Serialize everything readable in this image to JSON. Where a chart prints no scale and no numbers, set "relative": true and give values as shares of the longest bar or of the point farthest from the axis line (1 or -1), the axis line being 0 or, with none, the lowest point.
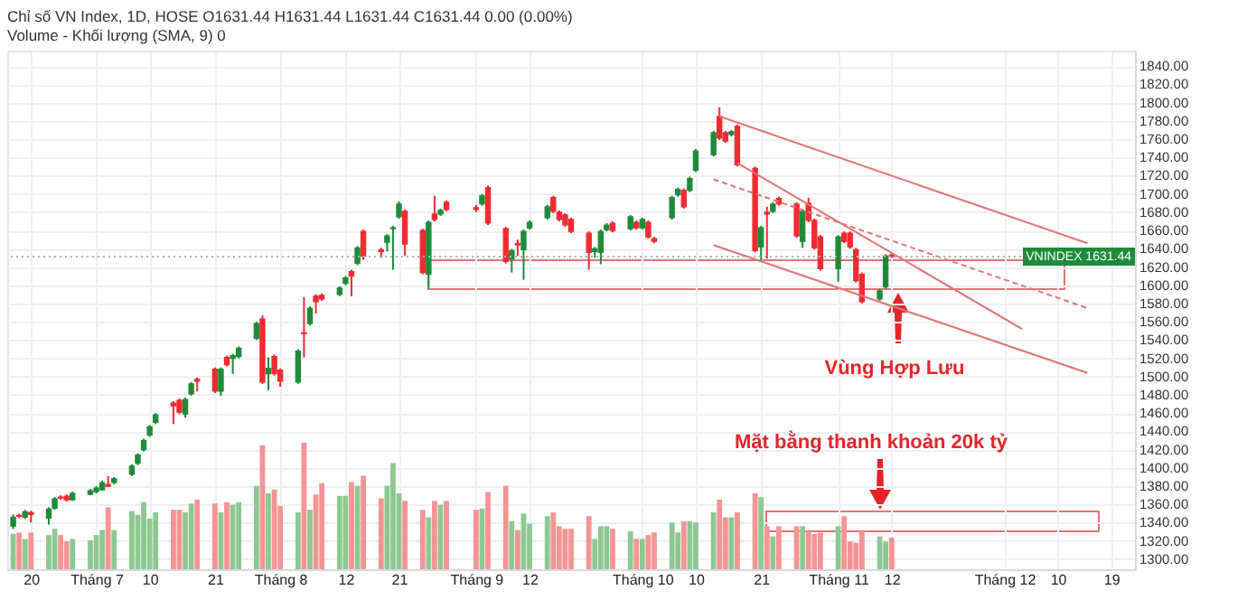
{
  "chart_data": [
    {
      "type": "candlestick",
      "title": "Chỉ số VN Index, 1D, HOSE  O1631.44 H1631.44 L1631.44 C1631.44 0.00 (0.00%)",
      "subtitle": "Volume - Khối lượng (SMA, 9) 0",
      "x": [
        "--06-17",
        "--06-18",
        "--06-19",
        "--06-20",
        "--06-23",
        "--06-24",
        "--06-25",
        "--06-26",
        "--06-27",
        "--06-30",
        "--07-01",
        "--07-02",
        "--07-03",
        "--07-04",
        "--07-07",
        "--07-08",
        "--07-09",
        "--07-10",
        "--07-11",
        "--07-14",
        "--07-15",
        "--07-16",
        "--07-17",
        "--07-18",
        "--07-21",
        "--07-22",
        "--07-23",
        "--07-24",
        "--07-25",
        "--07-28",
        "--07-29",
        "--07-30",
        "--07-31",
        "--08-01",
        "--08-04",
        "--08-05",
        "--08-06",
        "--08-07",
        "--08-08",
        "--08-11",
        "--08-12",
        "--08-13",
        "--08-14",
        "--08-15",
        "--08-18",
        "--08-19",
        "--08-20",
        "--08-21",
        "--08-22",
        "--08-25",
        "--08-26",
        "--08-27",
        "--08-28",
        "--08-29",
        "--09-03",
        "--09-04",
        "--09-05",
        "--09-08",
        "--09-09",
        "--09-10",
        "--09-11",
        "--09-12",
        "--09-15",
        "--09-16",
        "--09-17",
        "--09-18",
        "--09-19",
        "--09-22",
        "--09-23",
        "--09-24",
        "--09-25",
        "--09-26",
        "--09-29",
        "--09-30",
        "--10-01",
        "--10-02",
        "--10-03",
        "--10-06",
        "--10-07",
        "--10-08",
        "--10-09",
        "--10-10",
        "--10-13",
        "--10-14",
        "--10-15",
        "--10-16",
        "--10-17",
        "--10-20",
        "--10-21",
        "--10-22",
        "--10-23",
        "--10-24",
        "--10-27",
        "--10-28",
        "--10-29",
        "--10-30",
        "--10-31",
        "--11-03",
        "--11-04",
        "--11-05",
        "--11-06",
        "--11-07",
        "--11-10",
        "--11-11",
        "--11-12"
      ],
      "ohlc": [
        [
          1336,
          1349,
          1333,
          1346
        ],
        [
          1348,
          1350,
          1345,
          1347
        ],
        [
          1346,
          1354,
          1344,
          1352
        ],
        [
          1351,
          1353,
          1340,
          1349
        ],
        [
          1345,
          1357,
          1338,
          1355
        ],
        [
          1356,
          1368,
          1354,
          1366
        ],
        [
          1368,
          1370,
          1365,
          1367
        ],
        [
          1369,
          1371,
          1363,
          1365
        ],
        [
          1365,
          1374,
          1364,
          1372
        ],
        [
          1371,
          1377,
          1370,
          1375
        ],
        [
          1374,
          1380,
          1372,
          1378
        ],
        [
          1376,
          1386,
          1375,
          1384
        ],
        [
          1382,
          1391,
          1379,
          1380
        ],
        [
          1384,
          1390,
          1382,
          1388
        ],
        [
          1393,
          1404,
          1391,
          1402
        ],
        [
          1405,
          1416,
          1403,
          1414
        ],
        [
          1420,
          1432,
          1418,
          1430
        ],
        [
          1436,
          1447,
          1434,
          1445
        ],
        [
          1450,
          1460,
          1448,
          1458
        ],
        [
          1471,
          1473,
          1448,
          1468
        ],
        [
          1474,
          1476,
          1459,
          1461
        ],
        [
          1459,
          1477,
          1455,
          1475
        ],
        [
          1481,
          1494,
          1479,
          1492
        ],
        [
          1497,
          1499,
          1484,
          1495
        ],
        [
          1508,
          1510,
          1482,
          1484
        ],
        [
          1484,
          1510,
          1479,
          1508
        ],
        [
          1521,
          1523,
          1511,
          1513
        ],
        [
          1520,
          1525,
          1503,
          1523
        ],
        [
          1522,
          1533,
          1520,
          1531
        ],
        [
          1542,
          1560,
          1540,
          1558
        ],
        [
          1563,
          1567,
          1492,
          1494
        ],
        [
          1503,
          1521,
          1485,
          1509
        ],
        [
          1522,
          1524,
          1501,
          1503
        ],
        [
          1507,
          1509,
          1489,
          1495
        ],
        [
          1494,
          1530,
          1492,
          1528
        ],
        [
          1548,
          1587,
          1521,
          1547
        ],
        [
          1558,
          1577,
          1556,
          1575
        ],
        [
          1588,
          1590,
          1569,
          1582
        ],
        [
          1589,
          1591,
          1583,
          1585
        ],
        [
          1590,
          1599,
          1588,
          1597
        ],
        [
          1602,
          1610,
          1600,
          1608
        ],
        [
          1615,
          1617,
          1588,
          1610
        ],
        [
          1624,
          1643,
          1622,
          1641
        ],
        [
          1659,
          1661,
          1628,
          1632
        ],
        [
          1639,
          1641,
          1630,
          1637
        ],
        [
          1647,
          1656,
          1637,
          1654
        ],
        [
          1662,
          1665,
          1617,
          1663
        ],
        [
          1675,
          1692,
          1673,
          1689
        ],
        [
          1681,
          1683,
          1632,
          1645
        ],
        [
          1660,
          1662,
          1612,
          1614
        ],
        [
          1612,
          1671,
          1596,
          1669
        ],
        [
          1678,
          1698,
          1670,
          1672
        ],
        [
          1678,
          1684,
          1676,
          1682
        ],
        [
          1691,
          1693,
          1681,
          1683
        ],
        [
          1685,
          1688,
          1680,
          1683
        ],
        [
          1689,
          1700,
          1687,
          1698
        ],
        [
          1707,
          1709,
          1666,
          1668
        ],
        [
          1662,
          1664,
          1624,
          1626
        ],
        [
          1629,
          1640,
          1614,
          1638
        ],
        [
          1646,
          1650,
          1632,
          1644
        ],
        [
          1639,
          1661,
          1606,
          1659
        ],
        [
          1663,
          1671,
          1661,
          1669
        ],
        [
          1674,
          1688,
          1672,
          1686
        ],
        [
          1696,
          1698,
          1679,
          1681
        ],
        [
          1680,
          1682,
          1670,
          1672
        ],
        [
          1677,
          1679,
          1664,
          1666
        ],
        [
          1672,
          1674,
          1657,
          1659
        ],
        [
          1657,
          1659,
          1617,
          1636
        ],
        [
          1637,
          1642,
          1630,
          1640
        ],
        [
          1636,
          1661,
          1623,
          1659
        ],
        [
          1661,
          1668,
          1659,
          1666
        ],
        [
          1668,
          1670,
          1658,
          1660
        ],
        [
          1662,
          1677,
          1660,
          1675
        ],
        [
          1669,
          1671,
          1661,
          1663
        ],
        [
          1663,
          1674,
          1661,
          1672
        ],
        [
          1669,
          1671,
          1651,
          1653
        ],
        [
          1651,
          1653,
          1646,
          1648
        ],
        [
          1674,
          1698,
          1672,
          1696
        ],
        [
          1699,
          1707,
          1697,
          1705
        ],
        [
          1704,
          1706,
          1684,
          1686
        ],
        [
          1704,
          1719,
          1702,
          1717
        ],
        [
          1726,
          1749,
          1724,
          1747
        ],
        [
          1743,
          1769,
          1741,
          1767
        ],
        [
          1785,
          1795,
          1759,
          1761
        ],
        [
          1767,
          1769,
          1756,
          1758
        ],
        [
          1765,
          1770,
          1763,
          1768
        ],
        [
          1774,
          1776,
          1730,
          1732
        ],
        [
          1728,
          1730,
          1636,
          1638
        ],
        [
          1642,
          1665,
          1626,
          1663
        ],
        [
          1680,
          1686,
          1629,
          1678
        ],
        [
          1681,
          1691,
          1679,
          1689
        ],
        [
          1695,
          1697,
          1687,
          1689
        ],
        [
          1689,
          1691,
          1652,
          1654
        ],
        [
          1648,
          1683,
          1641,
          1681
        ],
        [
          1690,
          1696,
          1669,
          1671
        ],
        [
          1671,
          1673,
          1639,
          1641
        ],
        [
          1653,
          1655,
          1616,
          1618
        ],
        [
          1618,
          1655,
          1604,
          1653
        ],
        [
          1657,
          1659,
          1646,
          1648
        ],
        [
          1657,
          1659,
          1640,
          1642
        ],
        [
          1639,
          1641,
          1603,
          1605
        ],
        [
          1612,
          1614,
          1580,
          1582
        ],
        [
          1585,
          1596,
          1583,
          1594
        ],
        [
          1598,
          1634,
          1596,
          1632
        ],
        [
          1633,
          1635,
          1630,
          1631.44
        ]
      ],
      "colors": [
        "#1f8b3a",
        "#ef2b33",
        "#1f8b3a",
        "#ef2b33",
        "#1f8b3a",
        "#1f8b3a",
        "#ef2b33",
        "#ef2b33",
        "#1f8b3a",
        "#1f8b3a",
        "#1f8b3a",
        "#1f8b3a",
        "#ef2b33",
        "#1f8b3a",
        "#1f8b3a",
        "#1f8b3a",
        "#1f8b3a",
        "#1f8b3a",
        "#1f8b3a",
        "#ef2b33",
        "#ef2b33",
        "#1f8b3a",
        "#1f8b3a",
        "#ef2b33",
        "#ef2b33",
        "#1f8b3a",
        "#ef2b33",
        "#1f8b3a",
        "#1f8b3a",
        "#1f8b3a",
        "#ef2b33",
        "#1f8b3a",
        "#ef2b33",
        "#ef2b33",
        "#1f8b3a",
        "#ef2b33",
        "#1f8b3a",
        "#ef2b33",
        "#ef2b33",
        "#1f8b3a",
        "#1f8b3a",
        "#ef2b33",
        "#1f8b3a",
        "#ef2b33",
        "#ef2b33",
        "#1f8b3a",
        "#1f8b3a",
        "#1f8b3a",
        "#ef2b33",
        "#ef2b33",
        "#1f8b3a",
        "#ef2b33",
        "#1f8b3a",
        "#ef2b33",
        "#ef2b33",
        "#1f8b3a",
        "#ef2b33",
        "#ef2b33",
        "#1f8b3a",
        "#ef2b33",
        "#1f8b3a",
        "#1f8b3a",
        "#1f8b3a",
        "#ef2b33",
        "#ef2b33",
        "#ef2b33",
        "#ef2b33",
        "#ef2b33",
        "#1f8b3a",
        "#1f8b3a",
        "#1f8b3a",
        "#ef2b33",
        "#1f8b3a",
        "#ef2b33",
        "#1f8b3a",
        "#ef2b33",
        "#ef2b33",
        "#1f8b3a",
        "#1f8b3a",
        "#ef2b33",
        "#1f8b3a",
        "#1f8b3a",
        "#1f8b3a",
        "#ef2b33",
        "#ef2b33",
        "#1f8b3a",
        "#ef2b33",
        "#ef2b33",
        "#1f8b3a",
        "#ef2b33",
        "#1f8b3a",
        "#ef2b33",
        "#ef2b33",
        "#1f8b3a",
        "#ef2b33",
        "#ef2b33",
        "#ef2b33",
        "#1f8b3a",
        "#ef2b33",
        "#ef2b33",
        "#ef2b33",
        "#ef2b33",
        "#1f8b3a",
        "#1f8b3a",
        "#ef2b33"
      ],
      "series": [
        {
          "type": "line",
          "color": "#e57373",
          "x": [
            "--10-14",
            "--12-15"
          ],
          "values": [
            1785,
            1646
          ]
        },
        {
          "type": "line",
          "color": "#e57373",
          "x": [
            "--10-17",
            "--12-04"
          ],
          "values": [
            1734,
            1552
          ]
        },
        {
          "type": "line",
          "color": "#e57373",
          "line_style": "dashed",
          "x": [
            "--10-13",
            "--12-15"
          ],
          "values": [
            1716,
            1575
          ]
        },
        {
          "type": "line",
          "color": "#e57373",
          "x": [
            "--10-13",
            "--12-15"
          ],
          "values": [
            1644,
            1504
          ]
        }
      ],
      "xlim": [
        "--06-16",
        "--12-23"
      ],
      "ylim": [
        1289,
        1857
      ],
      "yticks": [
        {
          "value": 1300,
          "label": "1300.00"
        },
        {
          "value": 1320,
          "label": "1320.00"
        },
        {
          "value": 1340,
          "label": "1340.00"
        },
        {
          "value": 1360,
          "label": "1360.00"
        },
        {
          "value": 1380,
          "label": "1380.00"
        },
        {
          "value": 1400,
          "label": "1400.00"
        },
        {
          "value": 1420,
          "label": "1420.00"
        },
        {
          "value": 1440,
          "label": "1440.00"
        },
        {
          "value": 1460,
          "label": "1460.00"
        },
        {
          "value": 1480,
          "label": "1480.00"
        },
        {
          "value": 1500,
          "label": "1500.00"
        },
        {
          "value": 1520,
          "label": "1520.00"
        },
        {
          "value": 1540,
          "label": "1540.00"
        },
        {
          "value": 1560,
          "label": "1560.00"
        },
        {
          "value": 1580,
          "label": "1580.00"
        },
        {
          "value": 1600,
          "label": "1600.00"
        },
        {
          "value": 1620,
          "label": "1620.00"
        },
        {
          "value": 1640,
          "label": "1640.00"
        },
        {
          "value": 1660,
          "label": "1660.00"
        },
        {
          "value": 1680,
          "label": "1680.00"
        },
        {
          "value": 1700,
          "label": "1700.00"
        },
        {
          "value": 1720,
          "label": "1720.00"
        },
        {
          "value": 1740,
          "label": "1740.00"
        },
        {
          "value": 1760,
          "label": "1760.00"
        },
        {
          "value": 1780,
          "label": "1780.00"
        },
        {
          "value": 1800,
          "label": "1800.00"
        },
        {
          "value": 1820,
          "label": "1820.00"
        },
        {
          "value": 1840,
          "label": "1840.00"
        }
      ],
      "xticks": [
        {
          "value": "--06-20",
          "label": "20"
        },
        {
          "value": "--07-01",
          "label": "Tháng 7"
        },
        {
          "value": "--07-10",
          "label": "10"
        },
        {
          "value": "--07-21",
          "label": "21"
        },
        {
          "value": "--08-01",
          "label": "Tháng 8"
        },
        {
          "value": "--08-12",
          "label": "12"
        },
        {
          "value": "--08-21",
          "label": "21"
        },
        {
          "value": "--09-03",
          "label": "Tháng 9"
        },
        {
          "value": "--09-12",
          "label": "12"
        },
        {
          "value": "--10-01",
          "label": "Tháng 10"
        },
        {
          "value": "--10-10",
          "label": "10"
        },
        {
          "value": "--10-21",
          "label": "21"
        },
        {
          "value": "--11-03",
          "label": "Tháng 11"
        },
        {
          "value": "--11-12",
          "label": "12"
        },
        {
          "value": "--12-01",
          "label": "Tháng 12"
        },
        {
          "value": "--12-10",
          "label": "10"
        },
        {
          "value": "--12-19",
          "label": "19"
        }
      ],
      "grid": true,
      "ref_lines": [
        {
          "axis": "y",
          "value": 1631.44,
          "label": "VNINDEX 1631.44",
          "color": "#b0b0b0",
          "line_style": "dotted"
        }
      ],
      "annotations": [
        "Vùng Hợp Lưu",
        "Mặt bằng thanh khoản 20k tỷ"
      ]
    },
    {
      "type": "bar",
      "relative": true,
      "tick_labels": false,
      "xlim": [
        "--06-16",
        "--12-23"
      ],
      "x": [
        "--06-17",
        "--06-18",
        "--06-19",
        "--06-20",
        "--06-23",
        "--06-24",
        "--06-25",
        "--06-26",
        "--06-27",
        "--06-30",
        "--07-01",
        "--07-02",
        "--07-03",
        "--07-04",
        "--07-07",
        "--07-08",
        "--07-09",
        "--07-10",
        "--07-11",
        "--07-14",
        "--07-15",
        "--07-16",
        "--07-17",
        "--07-18",
        "--07-21",
        "--07-22",
        "--07-23",
        "--07-24",
        "--07-25",
        "--07-28",
        "--07-29",
        "--07-30",
        "--07-31",
        "--08-01",
        "--08-04",
        "--08-05",
        "--08-06",
        "--08-07",
        "--08-08",
        "--08-11",
        "--08-12",
        "--08-13",
        "--08-14",
        "--08-15",
        "--08-18",
        "--08-19",
        "--08-20",
        "--08-21",
        "--08-22",
        "--08-25",
        "--08-26",
        "--08-27",
        "--08-28",
        "--08-29",
        "--09-03",
        "--09-04",
        "--09-05",
        "--09-08",
        "--09-09",
        "--09-10",
        "--09-11",
        "--09-12",
        "--09-15",
        "--09-16",
        "--09-17",
        "--09-18",
        "--09-19",
        "--09-22",
        "--09-23",
        "--09-24",
        "--09-25",
        "--09-26",
        "--09-29",
        "--09-30",
        "--10-01",
        "--10-02",
        "--10-03",
        "--10-06",
        "--10-07",
        "--10-08",
        "--10-09",
        "--10-10",
        "--10-13",
        "--10-14",
        "--10-15",
        "--10-16",
        "--10-17",
        "--10-20",
        "--10-21",
        "--10-22",
        "--10-23",
        "--10-24",
        "--10-27",
        "--10-28",
        "--10-29",
        "--10-30",
        "--10-31",
        "--11-03",
        "--11-04",
        "--11-05",
        "--11-06",
        "--11-07",
        "--11-10",
        "--11-11",
        "--11-12"
      ],
      "values": [
        0.28,
        0.29,
        0.24,
        0.29,
        0.27,
        0.32,
        0.27,
        0.22,
        0.24,
        0.23,
        0.27,
        0.31,
        0.49,
        0.31,
        0.46,
        0.43,
        0.53,
        0.4,
        0.45,
        0.47,
        0.47,
        0.45,
        0.52,
        0.55,
        0.52,
        0.45,
        0.53,
        0.51,
        0.53,
        0.66,
        0.98,
        0.6,
        0.63,
        0.5,
        0.45,
        1,
        0.47,
        0.59,
        0.68,
        0.58,
        0.58,
        0.69,
        0.66,
        0.74,
        0.56,
        0.66,
        0.84,
        0.6,
        0.54,
        0.47,
        0.41,
        0.54,
        0.51,
        0.54,
        0.47,
        0.48,
        0.61,
        0.66,
        0.38,
        0.31,
        0.44,
        0.36,
        0.42,
        0.45,
        0.34,
        0.32,
        0.32,
        0.42,
        0.24,
        0.34,
        0.34,
        0.32,
        0.3,
        0.24,
        0.24,
        0.27,
        0.29,
        0.37,
        0.29,
        0.38,
        0.38,
        0.37,
        0.45,
        0.55,
        0.41,
        0.41,
        0.45,
        0.6,
        0.57,
        0.34,
        0.26,
        0.34,
        0.34,
        0.34,
        0.3,
        0.28,
        0.29,
        0.34,
        0.42,
        0.22,
        0.21,
        0.3,
        0.26,
        0.22,
        0.25
      ],
      "colors": [
        "#8ec891",
        "#f49494",
        "#8ec891",
        "#f49494",
        "#8ec891",
        "#8ec891",
        "#f49494",
        "#f49494",
        "#8ec891",
        "#8ec891",
        "#8ec891",
        "#8ec891",
        "#f49494",
        "#8ec891",
        "#8ec891",
        "#8ec891",
        "#8ec891",
        "#8ec891",
        "#8ec891",
        "#f49494",
        "#f49494",
        "#8ec891",
        "#8ec891",
        "#f49494",
        "#f49494",
        "#8ec891",
        "#f49494",
        "#8ec891",
        "#8ec891",
        "#8ec891",
        "#f49494",
        "#8ec891",
        "#f49494",
        "#f49494",
        "#8ec891",
        "#f49494",
        "#8ec891",
        "#f49494",
        "#f49494",
        "#8ec891",
        "#8ec891",
        "#f49494",
        "#8ec891",
        "#f49494",
        "#f49494",
        "#8ec891",
        "#8ec891",
        "#8ec891",
        "#f49494",
        "#f49494",
        "#8ec891",
        "#f49494",
        "#8ec891",
        "#f49494",
        "#f49494",
        "#8ec891",
        "#f49494",
        "#f49494",
        "#8ec891",
        "#f49494",
        "#8ec891",
        "#8ec891",
        "#8ec891",
        "#f49494",
        "#f49494",
        "#f49494",
        "#f49494",
        "#f49494",
        "#8ec891",
        "#8ec891",
        "#8ec891",
        "#f49494",
        "#8ec891",
        "#f49494",
        "#8ec891",
        "#f49494",
        "#f49494",
        "#8ec891",
        "#8ec891",
        "#f49494",
        "#8ec891",
        "#8ec891",
        "#8ec891",
        "#f49494",
        "#f49494",
        "#8ec891",
        "#f49494",
        "#f49494",
        "#8ec891",
        "#f49494",
        "#8ec891",
        "#f49494",
        "#f49494",
        "#8ec891",
        "#f49494",
        "#f49494",
        "#f49494",
        "#8ec891",
        "#f49494",
        "#f49494",
        "#f49494",
        "#f49494",
        "#8ec891",
        "#8ec891",
        "#f49494"
      ]
    }
  ]
}
